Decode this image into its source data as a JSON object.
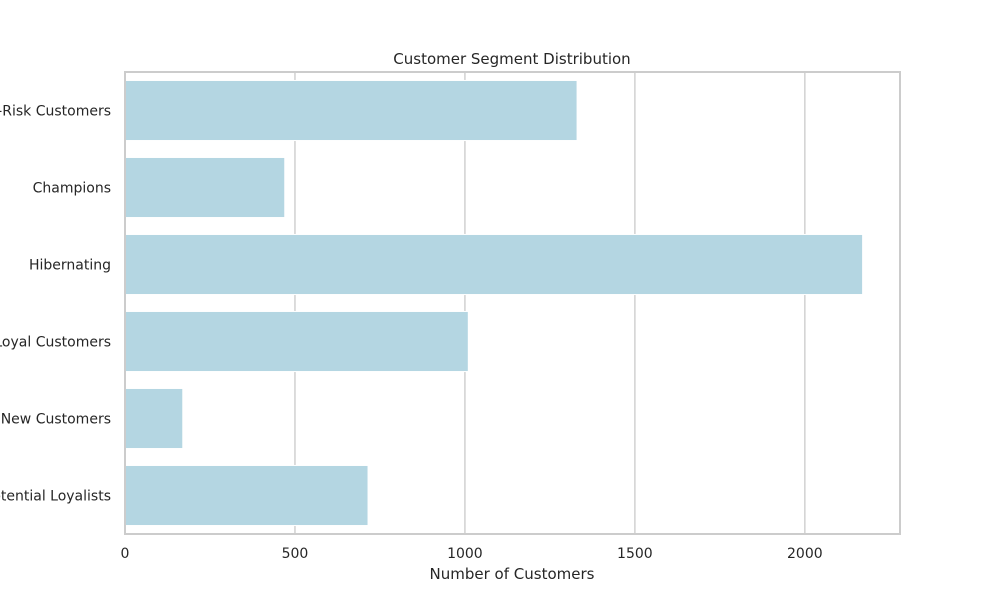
{
  "chart_data": {
    "type": "bar",
    "orientation": "horizontal",
    "title": "Customer Segment Distribution",
    "xlabel": "Number of Customers",
    "ylabel": "",
    "categories": [
      "At-Risk Customers",
      "Champions",
      "Hibernating",
      "Loyal Customers",
      "New Customers",
      "Potential Loyalists"
    ],
    "values": [
      1330,
      470,
      2170,
      1010,
      170,
      715
    ],
    "xlim": [
      0,
      2280
    ],
    "xticks": [
      0,
      500,
      1000,
      1500,
      2000
    ],
    "xtick_labels": [
      "0",
      "500",
      "1000",
      "1500",
      "2000"
    ],
    "grid": "vertical",
    "bar_color": "#b4d6e2",
    "grid_color": "#d4d4d4",
    "frame_color": "#cccccc"
  }
}
